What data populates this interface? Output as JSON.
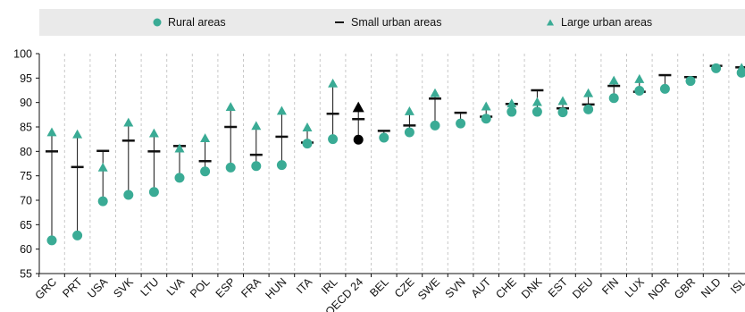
{
  "chart_data": {
    "type": "scatter",
    "title": "",
    "xlabel": "",
    "ylabel": "",
    "ylim": [
      55,
      100
    ],
    "yticks": [
      55,
      60,
      65,
      70,
      75,
      80,
      85,
      90,
      95,
      100
    ],
    "grid": "vertical dashed",
    "legend_position": "top",
    "categories": [
      "GRC",
      "PRT",
      "USA",
      "SVK",
      "LTU",
      "LVA",
      "POL",
      "ESP",
      "FRA",
      "HUN",
      "ITA",
      "IRL",
      "OECD 24",
      "BEL",
      "CZE",
      "SWE",
      "SVN",
      "AUT",
      "CHE",
      "DNK",
      "EST",
      "DEU",
      "FIN",
      "LUX",
      "NOR",
      "GBR",
      "NLD",
      "ISL"
    ],
    "highlight_category": "OECD 24",
    "series": [
      {
        "name": "Rural areas",
        "marker": "circle",
        "color": "#3aab95",
        "values": [
          61.8,
          62.8,
          69.8,
          71.1,
          71.7,
          74.6,
          75.9,
          76.7,
          77.0,
          77.2,
          81.6,
          82.5,
          82.4,
          82.8,
          83.9,
          85.3,
          85.7,
          86.7,
          88.1,
          88.1,
          88.0,
          88.6,
          90.9,
          92.4,
          92.8,
          94.4,
          97.0,
          96.1
        ]
      },
      {
        "name": "Small urban areas",
        "marker": "dash",
        "color": "#111111",
        "values": [
          80.0,
          76.8,
          80.1,
          82.2,
          80.0,
          81.1,
          78.0,
          85.0,
          79.3,
          83.0,
          81.8,
          87.7,
          86.6,
          84.2,
          85.3,
          90.8,
          87.9,
          87.1,
          89.7,
          92.5,
          88.8,
          89.6,
          93.4,
          92.2,
          95.6,
          95.2,
          97.5,
          97.2
        ]
      },
      {
        "name": "Large urban areas",
        "marker": "triangle",
        "color": "#3aab95",
        "values": [
          83.9,
          83.5,
          76.7,
          85.9,
          83.7,
          80.6,
          82.7,
          89.1,
          85.2,
          88.3,
          84.9,
          93.9,
          89.0,
          null,
          88.2,
          91.9,
          null,
          89.2,
          89.8,
          90.1,
          90.3,
          91.9,
          94.5,
          94.8,
          null,
          null,
          null,
          97.1
        ]
      }
    ]
  }
}
